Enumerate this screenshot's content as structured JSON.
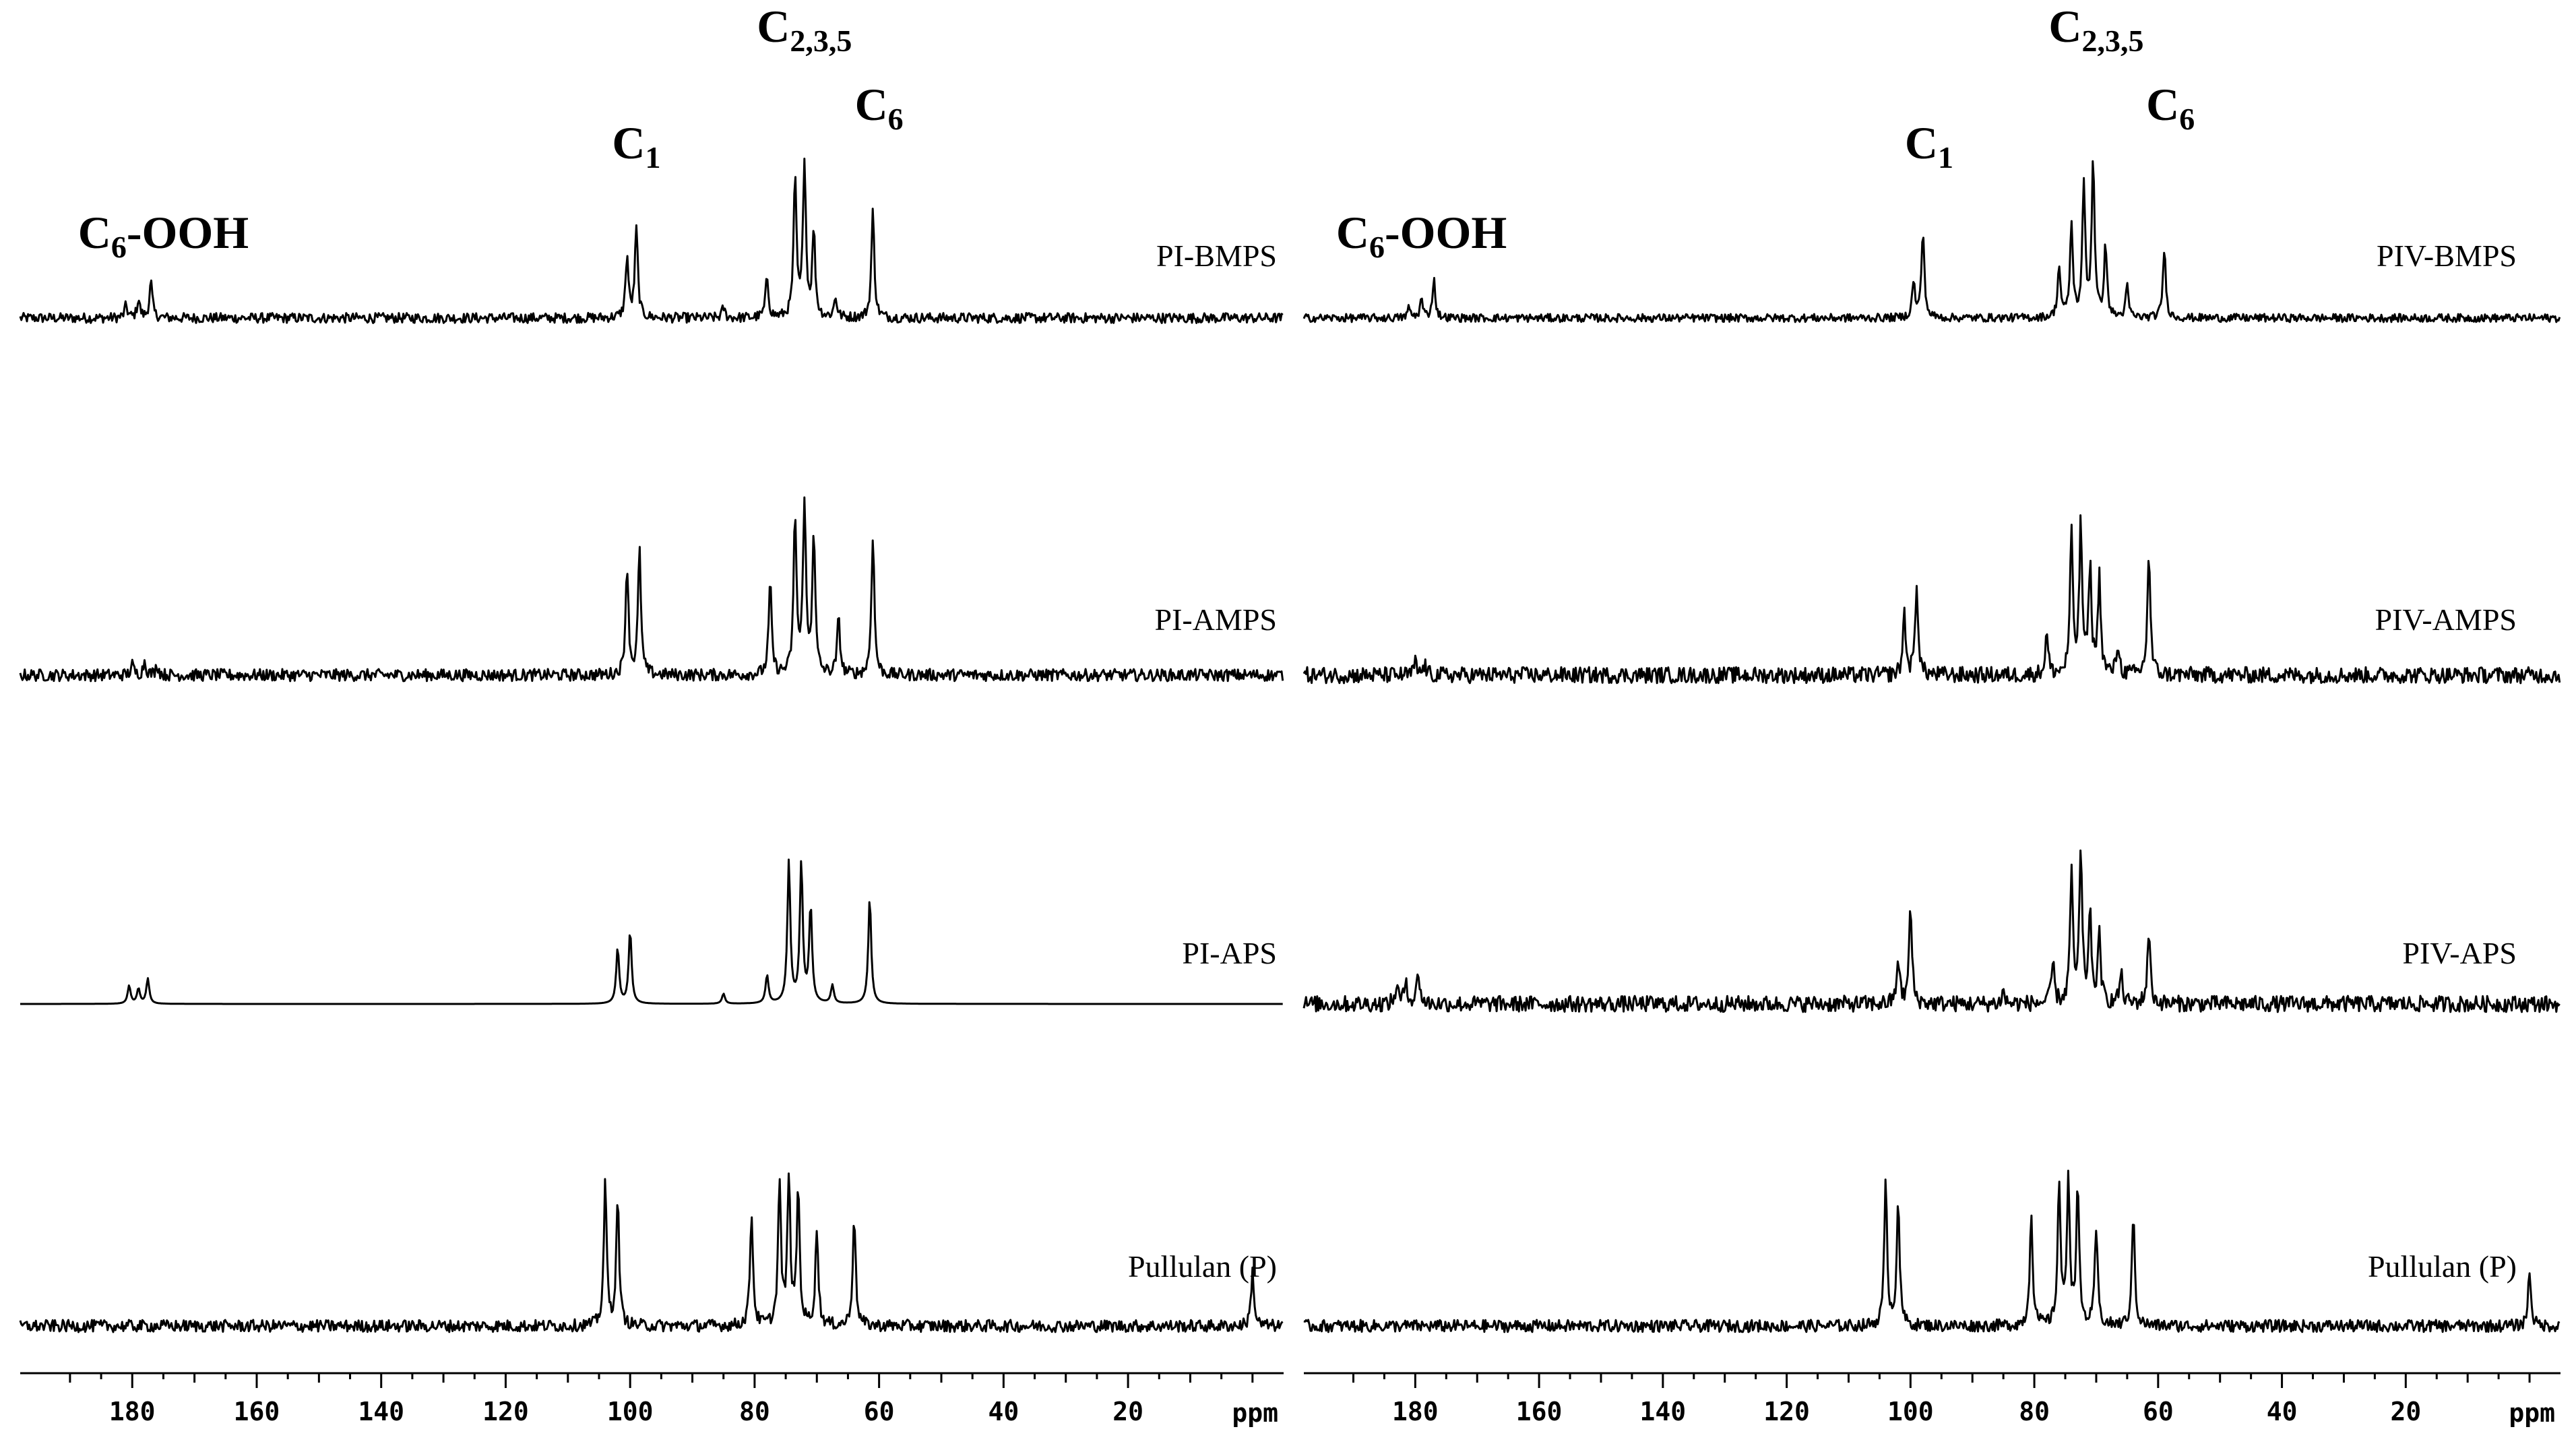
{
  "chart_data": [
    {
      "type": "line",
      "xlabel": "ppm",
      "xlim": [
        198,
        -5
      ],
      "x_ticks": [
        180,
        160,
        140,
        120,
        100,
        80,
        60,
        40,
        20
      ],
      "tick_labels": [
        "180",
        "160",
        "140",
        "120",
        "100",
        "80",
        "60",
        "40",
        "20"
      ],
      "peak_labels": [
        {
          "base": "C",
          "sub": "6",
          "rest": "-OOH",
          "ppm": 175
        },
        {
          "base": "C",
          "sub": "1",
          "rest": "",
          "ppm": 99
        },
        {
          "base": "C",
          "sub": "2,3,5",
          "rest": "",
          "ppm": 72
        },
        {
          "base": "C",
          "sub": "6",
          "rest": "",
          "ppm": 60
        }
      ],
      "series": [
        {
          "name": "PI-BMPS",
          "noise": 0.05,
          "peaks": [
            [
              181,
              0.12
            ],
            [
              179,
              0.18
            ],
            [
              177,
              0.35
            ],
            [
              100.5,
              0.6
            ],
            [
              99,
              0.88
            ],
            [
              85,
              0.1
            ],
            [
              78,
              0.4
            ],
            [
              73.5,
              1.35
            ],
            [
              72,
              1.55
            ],
            [
              70.5,
              0.85
            ],
            [
              67,
              0.2
            ],
            [
              61,
              1.05
            ]
          ]
        },
        {
          "name": "PI-AMPS",
          "noise": 0.06,
          "peaks": [
            [
              180,
              0.1
            ],
            [
              178,
              0.14
            ],
            [
              176,
              0.1
            ],
            [
              100.5,
              1.08
            ],
            [
              98.5,
              1.22
            ],
            [
              77.5,
              0.9
            ],
            [
              73.5,
              1.55
            ],
            [
              72,
              1.7
            ],
            [
              70.5,
              1.4
            ],
            [
              66.5,
              0.55
            ],
            [
              61,
              1.38
            ]
          ]
        },
        {
          "name": "PI-APS",
          "noise": 0.0,
          "peaks": [
            [
              180.5,
              0.18
            ],
            [
              179,
              0.15
            ],
            [
              177.5,
              0.25
            ],
            [
              102,
              0.55
            ],
            [
              100,
              0.72
            ],
            [
              85,
              0.1
            ],
            [
              78,
              0.28
            ],
            [
              74.5,
              1.4
            ],
            [
              72.5,
              1.38
            ],
            [
              71,
              0.95
            ],
            [
              67.5,
              0.18
            ],
            [
              61.5,
              1.05
            ]
          ]
        },
        {
          "name": "Pullulan (P)",
          "noise": 0.06,
          "peaks": [
            [
              104,
              1.4
            ],
            [
              102,
              1.25
            ],
            [
              80.5,
              1.12
            ],
            [
              76,
              1.4
            ],
            [
              74.5,
              1.45
            ],
            [
              73,
              1.35
            ],
            [
              70,
              0.95
            ],
            [
              64,
              1.1
            ],
            [
              0,
              0.55
            ]
          ]
        }
      ]
    },
    {
      "type": "line",
      "xlabel": "ppm",
      "xlim": [
        198,
        -5
      ],
      "x_ticks": [
        180,
        160,
        140,
        120,
        100,
        80,
        60,
        40,
        20
      ],
      "tick_labels": [
        "180",
        "160",
        "140",
        "120",
        "100",
        "80",
        "60",
        "40",
        "20"
      ],
      "peak_labels": [
        {
          "base": "C",
          "sub": "6",
          "rest": "-OOH",
          "ppm": 179
        },
        {
          "base": "C",
          "sub": "1",
          "rest": "",
          "ppm": 97
        },
        {
          "base": "C",
          "sub": "2,3,5",
          "rest": "",
          "ppm": 70
        },
        {
          "base": "C",
          "sub": "6",
          "rest": "",
          "ppm": 58
        }
      ],
      "series": [
        {
          "name": "PIV-BMPS",
          "noise": 0.04,
          "peaks": [
            [
              181,
              0.1
            ],
            [
              179,
              0.18
            ],
            [
              177,
              0.38
            ],
            [
              99.5,
              0.35
            ],
            [
              98,
              0.85
            ],
            [
              76,
              0.5
            ],
            [
              74,
              0.9
            ],
            [
              72,
              1.3
            ],
            [
              70.5,
              1.55
            ],
            [
              68.5,
              0.7
            ],
            [
              65,
              0.3
            ],
            [
              59,
              0.68
            ]
          ]
        },
        {
          "name": "PIV-AMPS",
          "noise": 0.08,
          "peaks": [
            [
              180,
              0.12
            ],
            [
              178.5,
              0.1
            ],
            [
              101,
              0.6
            ],
            [
              99,
              0.9
            ],
            [
              78,
              0.4
            ],
            [
              74,
              1.35
            ],
            [
              72.5,
              1.45
            ],
            [
              71,
              1.05
            ],
            [
              69.5,
              0.95
            ],
            [
              66.5,
              0.3
            ],
            [
              61.5,
              1.2
            ]
          ]
        },
        {
          "name": "PIV-APS",
          "noise": 0.08,
          "peaks": [
            [
              183,
              0.18
            ],
            [
              181.5,
              0.25
            ],
            [
              179.5,
              0.32
            ],
            [
              102,
              0.45
            ],
            [
              100,
              0.95
            ],
            [
              85,
              0.12
            ],
            [
              77,
              0.4
            ],
            [
              74,
              1.25
            ],
            [
              72.5,
              1.45
            ],
            [
              71,
              0.85
            ],
            [
              69.5,
              0.65
            ],
            [
              66,
              0.3
            ],
            [
              61.5,
              0.72
            ]
          ]
        },
        {
          "name": "Pullulan (P)",
          "noise": 0.06,
          "peaks": [
            [
              104,
              1.4
            ],
            [
              102,
              1.25
            ],
            [
              80.5,
              1.12
            ],
            [
              76,
              1.4
            ],
            [
              74.5,
              1.45
            ],
            [
              73,
              1.35
            ],
            [
              70,
              0.95
            ],
            [
              64,
              1.1
            ],
            [
              0,
              0.55
            ]
          ]
        }
      ]
    }
  ]
}
